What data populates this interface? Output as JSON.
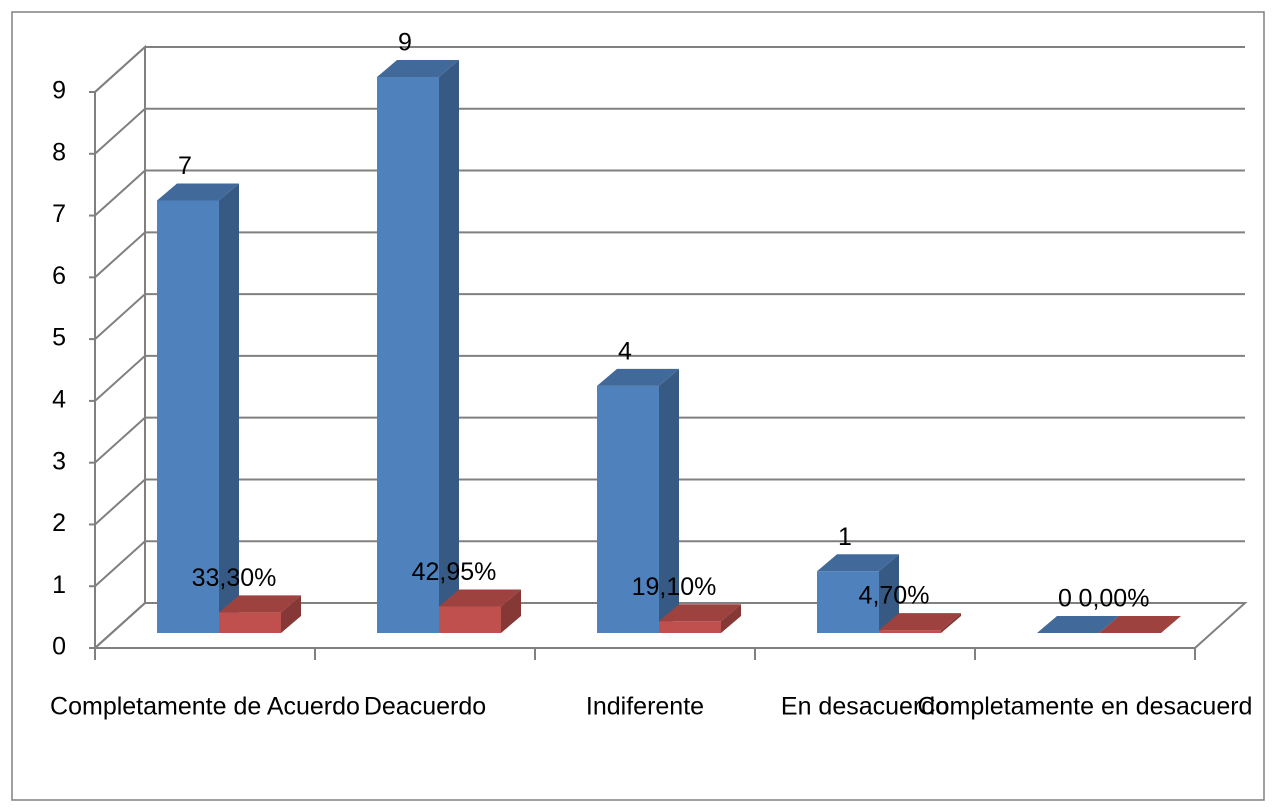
{
  "chart_data": {
    "type": "bar3d",
    "categories": [
      "Completamente de Acuerdo",
      "Deacuerdo",
      "Indiferente",
      "En desacuerdo",
      "Completamente en desacuerd"
    ],
    "series": [
      {
        "color": "#4f81bd",
        "values": [
          7,
          9,
          4,
          1,
          0
        ]
      },
      {
        "color": "#c0504d",
        "values": [
          0.333,
          0.4295,
          0.191,
          0.047,
          0
        ],
        "value_labels": [
          "33,30%",
          "42,95%",
          "19,10%",
          "4,70%",
          "0,00%"
        ]
      }
    ],
    "ylim": [
      0,
      9
    ],
    "yticks": [
      0,
      1,
      2,
      3,
      4,
      5,
      6,
      7,
      8,
      9
    ],
    "grid": true
  }
}
